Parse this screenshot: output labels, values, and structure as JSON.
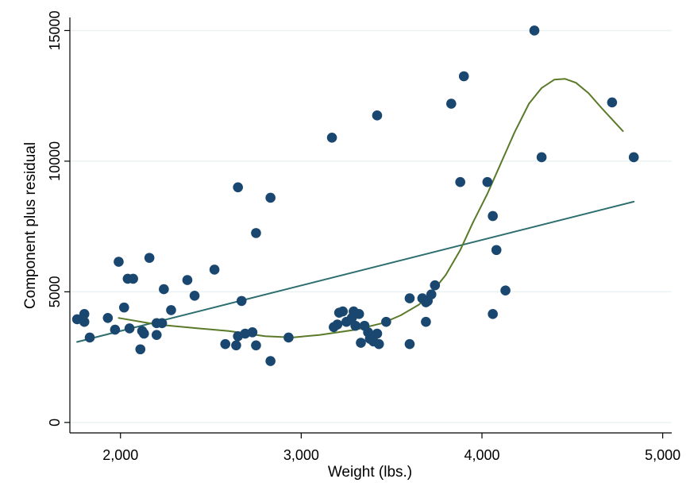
{
  "chart_data": {
    "type": "scatter",
    "xlabel": "Weight (lbs.)",
    "ylabel": "Component plus residual",
    "xlim": [
      1720,
      5050
    ],
    "ylim": [
      -400,
      15500
    ],
    "xticks": [
      2000,
      3000,
      4000,
      5000
    ],
    "xtick_labels": [
      "2,000",
      "3,000",
      "4,000",
      "5,000"
    ],
    "yticks": [
      0,
      5000,
      10000,
      15000
    ],
    "ytick_labels": [
      "0",
      "5000",
      "10000",
      "15000"
    ],
    "grid": "horizontal",
    "legend": "none",
    "colors": {
      "points": "#1a476f",
      "linear_fit": "#2d6d6d",
      "smooth_fit": "#5a7a2a",
      "grid": "#eaf2f3",
      "axis": "#000000"
    },
    "series": [
      {
        "kind": "points",
        "points": [
          [
            1760,
            3950
          ],
          [
            1800,
            4150
          ],
          [
            1800,
            3850
          ],
          [
            1830,
            3250
          ],
          [
            1930,
            4000
          ],
          [
            1970,
            3550
          ],
          [
            1990,
            6150
          ],
          [
            2020,
            4400
          ],
          [
            2040,
            5500
          ],
          [
            2050,
            3600
          ],
          [
            2070,
            5500
          ],
          [
            2110,
            2800
          ],
          [
            2120,
            3500
          ],
          [
            2130,
            3400
          ],
          [
            2160,
            6300
          ],
          [
            2200,
            3800
          ],
          [
            2200,
            3350
          ],
          [
            2230,
            3800
          ],
          [
            2240,
            5100
          ],
          [
            2280,
            4300
          ],
          [
            2370,
            5450
          ],
          [
            2410,
            4850
          ],
          [
            2520,
            5850
          ],
          [
            2580,
            3000
          ],
          [
            2640,
            2950
          ],
          [
            2650,
            9000
          ],
          [
            2650,
            3300
          ],
          [
            2670,
            4650
          ],
          [
            2690,
            3400
          ],
          [
            2730,
            3450
          ],
          [
            2750,
            7250
          ],
          [
            2750,
            2950
          ],
          [
            2830,
            8600
          ],
          [
            2830,
            2350
          ],
          [
            2930,
            3250
          ],
          [
            3170,
            10900
          ],
          [
            3180,
            3650
          ],
          [
            3200,
            3750
          ],
          [
            3210,
            4200
          ],
          [
            3230,
            4250
          ],
          [
            3250,
            3850
          ],
          [
            3280,
            4000
          ],
          [
            3290,
            4250
          ],
          [
            3300,
            3700
          ],
          [
            3320,
            4150
          ],
          [
            3330,
            3050
          ],
          [
            3350,
            3700
          ],
          [
            3370,
            3450
          ],
          [
            3380,
            3200
          ],
          [
            3400,
            3100
          ],
          [
            3420,
            11750
          ],
          [
            3420,
            3400
          ],
          [
            3430,
            3000
          ],
          [
            3470,
            3850
          ],
          [
            3600,
            4750
          ],
          [
            3600,
            3000
          ],
          [
            3670,
            4750
          ],
          [
            3690,
            3850
          ],
          [
            3690,
            4600
          ],
          [
            3700,
            4650
          ],
          [
            3720,
            4900
          ],
          [
            3740,
            5250
          ],
          [
            3830,
            12200
          ],
          [
            3880,
            9200
          ],
          [
            3900,
            13250
          ],
          [
            4030,
            9200
          ],
          [
            4060,
            7900
          ],
          [
            4060,
            4150
          ],
          [
            4080,
            6600
          ],
          [
            4130,
            5050
          ],
          [
            4290,
            15000
          ],
          [
            4330,
            10150
          ],
          [
            4720,
            12250
          ],
          [
            4840,
            10150
          ]
        ]
      },
      {
        "kind": "linear_fit",
        "points": [
          [
            1760,
            3080
          ],
          [
            4840,
            8450
          ]
        ]
      },
      {
        "kind": "smooth_fit",
        "points": [
          [
            1990,
            4000
          ],
          [
            2200,
            3750
          ],
          [
            2400,
            3620
          ],
          [
            2600,
            3500
          ],
          [
            2800,
            3300
          ],
          [
            2950,
            3250
          ],
          [
            3100,
            3350
          ],
          [
            3300,
            3550
          ],
          [
            3450,
            3800
          ],
          [
            3550,
            4100
          ],
          [
            3650,
            4500
          ],
          [
            3720,
            4950
          ],
          [
            3800,
            5650
          ],
          [
            3880,
            6600
          ],
          [
            3950,
            7650
          ],
          [
            4030,
            8750
          ],
          [
            4100,
            9850
          ],
          [
            4180,
            11100
          ],
          [
            4260,
            12200
          ],
          [
            4330,
            12800
          ],
          [
            4400,
            13120
          ],
          [
            4460,
            13150
          ],
          [
            4520,
            13000
          ],
          [
            4590,
            12600
          ],
          [
            4660,
            12050
          ],
          [
            4720,
            11600
          ],
          [
            4780,
            11150
          ]
        ]
      }
    ]
  }
}
